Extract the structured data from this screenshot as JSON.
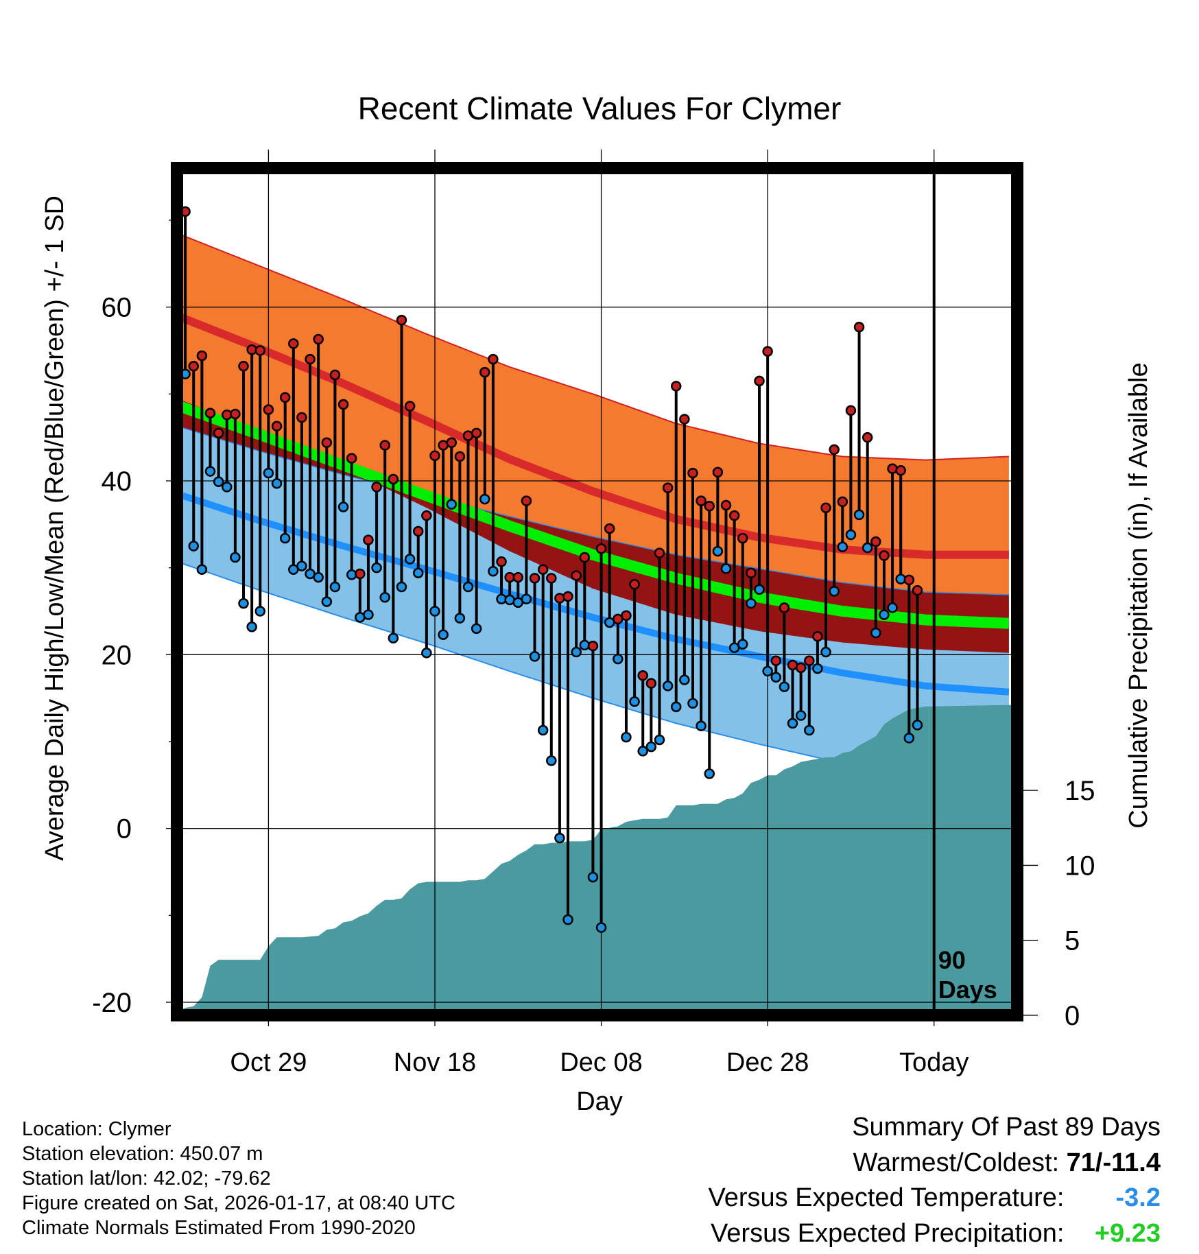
{
  "page_title": "Recent Climate Values For Clymer",
  "info": {
    "location": "Location: Clymer",
    "elevation": "Station elevation: 450.07 m",
    "latlon": "Station lat/lon: 42.02; -79.62",
    "created": "Figure created on Sat, 2026-01-17, at 08:40 UTC",
    "normals": "Climate Normals Estimated From 1990-2020"
  },
  "summary": {
    "title": "Summary Of Past 89 Days",
    "warmest_label": "Warmest/Coldest:",
    "warmest_value": "71/-11.4",
    "temp_label": "Versus Expected Temperature:",
    "temp_value": "-3.2",
    "temp_color": "#2a8ee8",
    "precip_label": "Versus Expected Precipitation:",
    "precip_value": "+9.23",
    "precip_color": "#22cc22"
  },
  "chart_data": {
    "type": "line",
    "title": "Recent Climate Values For Clymer",
    "xlabel": "Day",
    "ylabel": "Average Daily High/Low/Mean (Red/Blue/Green) +/- 1 SD",
    "y2label": "Cumulative Precipitation (in), If Available",
    "xlim": [
      0,
      101
    ],
    "ylim": [
      -21.5,
      76
    ],
    "y2lim": [
      0,
      56.5
    ],
    "yticks": [
      -20,
      0,
      20,
      40,
      60
    ],
    "y2ticks": [
      0,
      5,
      10,
      15
    ],
    "xticks": [
      {
        "day": 11,
        "label": "Oct 29"
      },
      {
        "day": 31,
        "label": "Nov 18"
      },
      {
        "day": 51,
        "label": "Dec 08"
      },
      {
        "day": 71,
        "label": "Dec 28"
      },
      {
        "day": 91,
        "label": "Today"
      }
    ],
    "today_day": 91,
    "today_note": [
      "90",
      "Days"
    ],
    "colors": {
      "high_band": "#f47a30",
      "high_mean": "#d82a2a",
      "high_border": "#d02020",
      "low_band": "#84c1e8",
      "low_mean": "#1e90ff",
      "low_border": "#2a8ee8",
      "overlap": "#941414",
      "mean_line": "#00ee00",
      "precip": "#4a9aa0",
      "obs_high": "#c62020",
      "obs_low": "#2090e0"
    },
    "normals": {
      "days": [
        0,
        10,
        20,
        30,
        40,
        50,
        60,
        70,
        80,
        90,
        100
      ],
      "high_mean": [
        59,
        55.2,
        51.2,
        46.9,
        42.5,
        38.8,
        35.6,
        33.5,
        32.1,
        31.5,
        31.5
      ],
      "high_sd": [
        9.5,
        9.5,
        9.7,
        10.0,
        10.6,
        11.2,
        11.0,
        10.8,
        10.7,
        10.9,
        11.3
      ],
      "low_mean": [
        38.5,
        35.4,
        32.5,
        29.8,
        27.0,
        24.3,
        21.8,
        19.8,
        17.9,
        16.4,
        15.7
      ],
      "low_sd": [
        7.8,
        8.0,
        8.2,
        8.5,
        8.9,
        9.3,
        9.7,
        10.1,
        10.4,
        10.8,
        11.2
      ],
      "mean": [
        48.7,
        45.3,
        41.8,
        38.3,
        34.8,
        31.5,
        28.8,
        26.6,
        25.0,
        24.0,
        23.6
      ]
    },
    "observed": {
      "highs": [
        71,
        53.2,
        54.4,
        47.8,
        45.5,
        47.6,
        47.7,
        53.2,
        55.1,
        55,
        48.2,
        46.3,
        49.6,
        55.8,
        47.3,
        54,
        56.3,
        44.4,
        52.2,
        48.8,
        42.6,
        29.3,
        33.2,
        39.3,
        44.1,
        40.2,
        58.5,
        48.6,
        34.2,
        36,
        42.9,
        44.1,
        44.4,
        42.8,
        45.2,
        45.5,
        52.5,
        54,
        30.7,
        28.9,
        28.9,
        37.7,
        28.8,
        29.8,
        28.8,
        26.5,
        26.7,
        29.1,
        31.2,
        21,
        32.2,
        34.5,
        24.1,
        24.5,
        28.1,
        17.6,
        16.7,
        31.7,
        39.2,
        50.9,
        47.1,
        40.9,
        37.7,
        37.1,
        41,
        37.2,
        36,
        33.4,
        29.4,
        51.5,
        54.9,
        19.3,
        25.4,
        18.8,
        18.5,
        19.3,
        22.1,
        36.9,
        43.6,
        37.6,
        48.1,
        57.7,
        45,
        33,
        31.4,
        41.4,
        41.2,
        28.6,
        27.4
      ],
      "lows": [
        52.3,
        32.5,
        29.8,
        41.1,
        39.9,
        39.3,
        31.2,
        25.9,
        23.2,
        25,
        40.9,
        39.7,
        33.4,
        29.8,
        30.2,
        29.3,
        28.9,
        26.1,
        27.8,
        37,
        29.2,
        24.3,
        24.6,
        30,
        26.6,
        21.9,
        27.8,
        31,
        29.4,
        20.2,
        25,
        22.3,
        37.3,
        24.2,
        27.8,
        23,
        37.9,
        29.6,
        26.4,
        26.3,
        26,
        26.4,
        19.8,
        11.3,
        7.8,
        -1.1,
        -10.5,
        20.3,
        21.1,
        -5.6,
        -11.4,
        23.7,
        19.5,
        10.5,
        14.6,
        8.9,
        9.4,
        10.2,
        16.4,
        14,
        17.1,
        14.4,
        11.8,
        6.3,
        31.9,
        29.9,
        20.8,
        21.2,
        25.9,
        27.5,
        18.1,
        17.4,
        16.3,
        12.1,
        13,
        11.3,
        18.4,
        20.3,
        27.3,
        32.4,
        33.8,
        36.1,
        32.3,
        22.5,
        24.6,
        25.4,
        28.7,
        10.4,
        11.9
      ]
    },
    "precip": {
      "days": [
        0,
        1,
        2,
        3,
        4,
        5,
        6,
        8,
        10,
        11,
        12,
        13,
        14,
        15,
        17,
        18,
        19,
        20,
        21,
        22,
        23,
        24,
        25,
        26,
        27,
        28,
        29,
        30,
        31,
        32,
        33,
        34,
        35,
        36,
        37,
        38,
        39,
        40,
        41,
        42,
        43,
        44,
        45,
        46,
        47,
        48,
        49,
        50,
        51,
        52,
        53,
        54,
        55,
        56,
        57,
        58,
        59,
        60,
        61,
        62,
        63,
        64,
        65,
        66,
        67,
        68,
        69,
        70,
        71,
        72,
        73,
        74,
        75,
        76,
        77,
        78,
        79,
        80,
        81,
        82,
        83,
        84,
        85,
        86,
        87,
        88,
        89,
        90,
        91,
        101
      ],
      "values": [
        0.2,
        0.5,
        0.6,
        1.2,
        3.3,
        3.7,
        3.7,
        3.7,
        3.7,
        4.6,
        5.2,
        5.2,
        5.2,
        5.2,
        5.3,
        5.7,
        5.8,
        6.2,
        6.3,
        6.6,
        6.8,
        7.3,
        7.7,
        7.7,
        7.8,
        8.4,
        8.8,
        8.9,
        8.9,
        8.9,
        8.9,
        8.9,
        9.0,
        9.0,
        9.1,
        9.6,
        10.1,
        10.3,
        10.7,
        11.0,
        11.4,
        11.4,
        11.5,
        11.5,
        11.6,
        11.6,
        11.6,
        11.7,
        12.4,
        12.5,
        12.6,
        12.9,
        13.0,
        13.1,
        13.1,
        13.1,
        13.2,
        14.0,
        14.0,
        14.0,
        14.1,
        14.1,
        14.1,
        14.4,
        14.5,
        14.8,
        15.5,
        15.7,
        16.0,
        16.0,
        16.4,
        16.6,
        16.9,
        17.0,
        17.1,
        17.2,
        17.2,
        17.5,
        17.6,
        18.0,
        18.3,
        18.6,
        19.4,
        19.8,
        20.1,
        20.4,
        20.5,
        20.6,
        20.6,
        20.7
      ]
    }
  }
}
